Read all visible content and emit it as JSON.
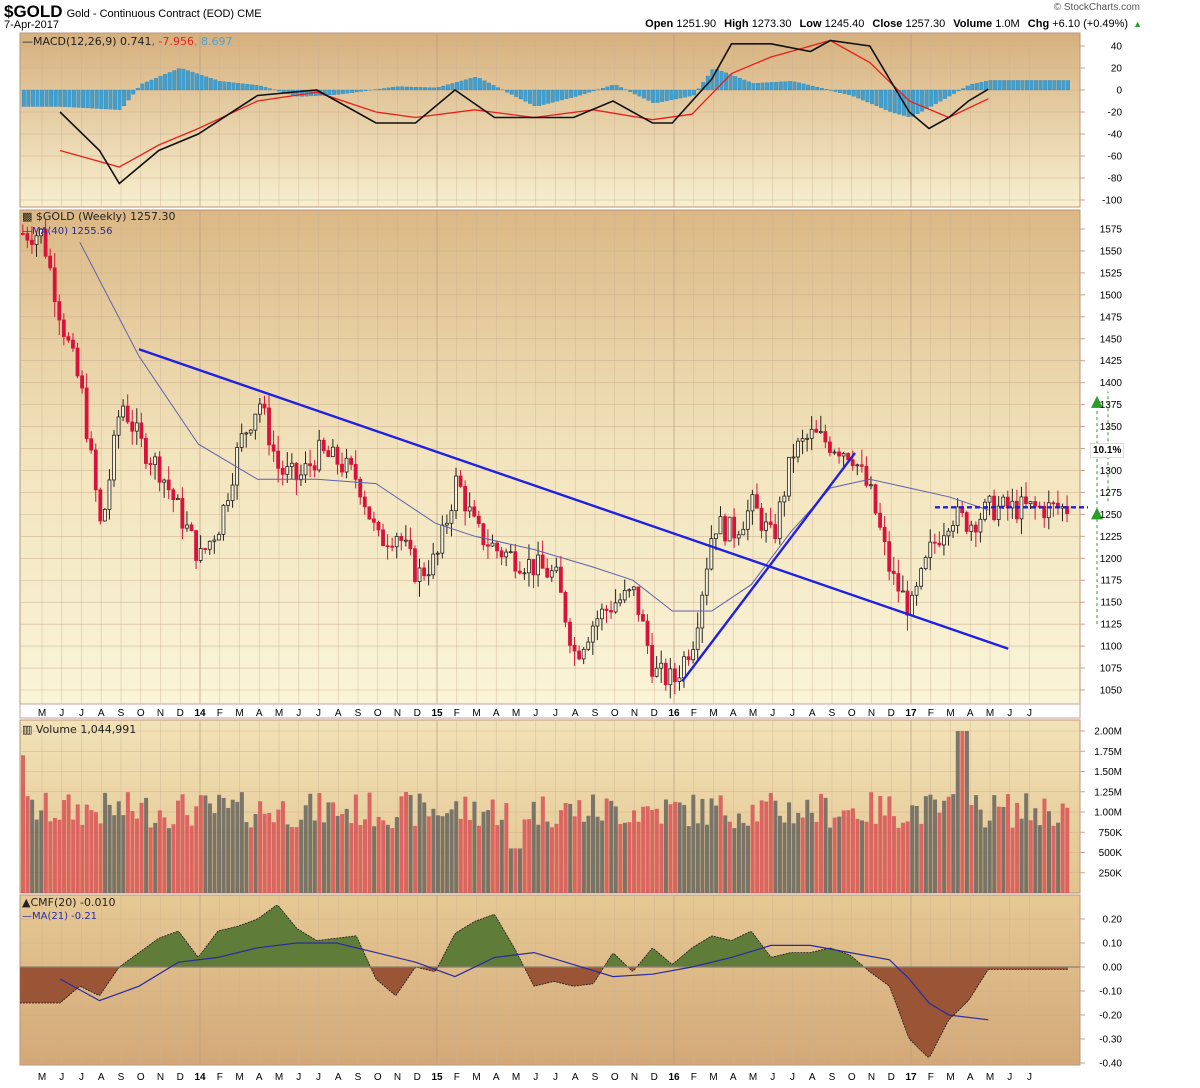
{
  "header": {
    "symbol": "$GOLD",
    "description": "Gold - Continuous Contract (EOD) CME",
    "date": "7-Apr-2017",
    "brand": "© StockCharts.com",
    "open_label": "Open",
    "open": "1251.90",
    "high_label": "High",
    "high": "1273.30",
    "low_label": "Low",
    "low": "1245.40",
    "close_label": "Close",
    "close": "1257.30",
    "volume_label": "Volume",
    "volume": "1.0M",
    "chg_label": "Chg",
    "chg": "+6.10 (+0.49%)",
    "chg_icon": "up-triangle-icon"
  },
  "legends": {
    "macd_name": "MACD(12,26,9)",
    "macd_value": "0.741",
    "macd_signal": ", -7.956",
    "macd_hist": ", 8.697",
    "price_name": "$GOLD (Weekly) 1257.30",
    "ma_name": "MA(40) 1255.56",
    "volume_name": "Volume 1,044,991",
    "cmf_name": "CMF(20) -0.010",
    "cmf_ma_name": "MA(21) -0.21"
  },
  "annotation": {
    "pct_label": "10.1%"
  },
  "colors": {
    "panel_top": "#d6b07e",
    "panel_bottom": "#f8f2d2",
    "up": "#222222",
    "down": "#d8123a",
    "macd": "#111111",
    "signal": "#e8201c",
    "hist": "#3f9fd0",
    "ma": "#6060b0",
    "trend": "#2020e0",
    "vol_down": "#d95a5a",
    "vol_up": "#6e6a62",
    "cmf_pos": "#5f7d38",
    "cmf_neg": "#9a5436",
    "target": "#2a9d2a"
  },
  "chart_data": [
    {
      "type": "line",
      "title": "MACD(12,26,9)",
      "ylim": [
        -100,
        50
      ],
      "yticks": [
        40,
        20,
        0,
        -20,
        -40,
        -60,
        -80,
        -100
      ],
      "series": [
        {
          "name": "MACD",
          "x": [
            "2013-05",
            "2013-07",
            "2013-08",
            "2013-10",
            "2013-12",
            "2014-03",
            "2014-06",
            "2014-09",
            "2014-11",
            "2015-01",
            "2015-03",
            "2015-05",
            "2015-07",
            "2015-09",
            "2015-11",
            "2015-12",
            "2016-02",
            "2016-03",
            "2016-05",
            "2016-07",
            "2016-08",
            "2016-10",
            "2016-11",
            "2016-12",
            "2017-01",
            "2017-02",
            "2017-03",
            "2017-04"
          ],
          "values": [
            -20,
            -55,
            -85,
            -55,
            -40,
            -5,
            0,
            -30,
            -30,
            0,
            -25,
            -25,
            -25,
            -10,
            -30,
            -30,
            10,
            42,
            42,
            35,
            45,
            40,
            10,
            -20,
            -35,
            -25,
            -10,
            0.7
          ]
        },
        {
          "name": "Signal",
          "x": [
            "2013-05",
            "2013-08",
            "2013-10",
            "2013-12",
            "2014-03",
            "2014-06",
            "2014-09",
            "2014-11",
            "2015-02",
            "2015-05",
            "2015-08",
            "2015-11",
            "2016-01",
            "2016-03",
            "2016-05",
            "2016-08",
            "2016-10",
            "2016-12",
            "2017-02",
            "2017-04"
          ],
          "values": [
            -55,
            -70,
            -50,
            -35,
            -10,
            -2,
            -20,
            -25,
            -18,
            -25,
            -18,
            -27,
            -22,
            15,
            30,
            45,
            25,
            -10,
            -25,
            -8
          ]
        },
        {
          "name": "Histogram",
          "x": [
            "2013-05",
            "2013-08",
            "2013-09",
            "2013-11",
            "2014-01",
            "2014-03",
            "2014-05",
            "2014-07",
            "2014-10",
            "2014-12",
            "2015-02",
            "2015-05",
            "2015-07",
            "2015-09",
            "2015-11",
            "2016-01",
            "2016-02",
            "2016-04",
            "2016-06",
            "2016-09",
            "2016-11",
            "2016-12",
            "2017-01",
            "2017-02",
            "2017-03",
            "2017-04"
          ],
          "values": [
            -15,
            -18,
            5,
            20,
            8,
            4,
            -6,
            -4,
            3,
            2,
            12,
            -15,
            -6,
            5,
            -12,
            -5,
            20,
            6,
            8,
            -5,
            -20,
            -25,
            -15,
            -5,
            5,
            8.7
          ]
        }
      ]
    },
    {
      "type": "candlestick",
      "title": "$GOLD (Weekly) 1257.30",
      "ylim": [
        1040,
        1590
      ],
      "yticks": [
        1575,
        1550,
        1525,
        1500,
        1475,
        1450,
        1425,
        1400,
        1375,
        1350,
        1325,
        1300,
        1275,
        1250,
        1225,
        1200,
        1175,
        1150,
        1125,
        1100,
        1075,
        1050
      ],
      "x_ticks": [
        "M",
        "J",
        "J",
        "A",
        "S",
        "O",
        "N",
        "D",
        "14",
        "F",
        "M",
        "A",
        "M",
        "J",
        "J",
        "A",
        "S",
        "O",
        "N",
        "D",
        "15",
        "F",
        "M",
        "A",
        "M",
        "J",
        "J",
        "A",
        "S",
        "O",
        "N",
        "D",
        "16",
        "F",
        "M",
        "A",
        "M",
        "J",
        "J",
        "A",
        "S",
        "O",
        "N",
        "D",
        "17",
        "F",
        "M",
        "A",
        "M",
        "J",
        "J"
      ],
      "approx_closes": {
        "x": [
          "2013-04",
          "2013-05",
          "2013-06",
          "2013-07",
          "2013-08",
          "2013-09",
          "2013-10",
          "2013-11",
          "2013-12",
          "2014-01",
          "2014-02",
          "2014-03",
          "2014-04",
          "2014-05",
          "2014-06",
          "2014-07",
          "2014-08",
          "2014-09",
          "2014-10",
          "2014-11",
          "2014-12",
          "2015-01",
          "2015-02",
          "2015-03",
          "2015-04",
          "2015-05",
          "2015-06",
          "2015-07",
          "2015-08",
          "2015-09",
          "2015-10",
          "2015-11",
          "2015-12",
          "2016-01",
          "2016-02",
          "2016-03",
          "2016-04",
          "2016-05",
          "2016-06",
          "2016-07",
          "2016-08",
          "2016-09",
          "2016-10",
          "2016-11",
          "2016-12",
          "2017-01",
          "2017-02",
          "2017-03",
          "2017-04"
        ],
        "values": [
          1570,
          1470,
          1390,
          1230,
          1380,
          1330,
          1300,
          1250,
          1200,
          1240,
          1330,
          1380,
          1300,
          1290,
          1320,
          1310,
          1290,
          1220,
          1230,
          1180,
          1200,
          1290,
          1230,
          1210,
          1200,
          1190,
          1180,
          1090,
          1130,
          1150,
          1160,
          1070,
          1060,
          1110,
          1240,
          1230,
          1260,
          1220,
          1320,
          1340,
          1330,
          1320,
          1270,
          1180,
          1140,
          1210,
          1250,
          1240,
          1257
        ]
      },
      "overlays": [
        {
          "name": "MA(40)",
          "last": 1255.56,
          "x": [
            "2013-06",
            "2013-09",
            "2013-12",
            "2014-03",
            "2014-06",
            "2014-09",
            "2014-12",
            "2015-02",
            "2015-05",
            "2015-08",
            "2015-10",
            "2015-12",
            "2016-02",
            "2016-04",
            "2016-06",
            "2016-08",
            "2016-10",
            "2016-12",
            "2017-02",
            "2017-04"
          ],
          "values": [
            1560,
            1430,
            1330,
            1290,
            1290,
            1285,
            1240,
            1225,
            1210,
            1190,
            1175,
            1140,
            1140,
            1170,
            1230,
            1280,
            1290,
            1280,
            1270,
            1255
          ]
        },
        {
          "name": "Downtrend line",
          "from": [
            "2013-09",
            1438
          ],
          "to": [
            "2017-04",
            1097
          ]
        },
        {
          "name": "Uptrend line",
          "from": [
            "2015-12",
            1060
          ],
          "to": [
            "2016-09",
            1320
          ]
        },
        {
          "name": "Horizontal resistance (dashed)",
          "from": [
            "2016-10",
            1258
          ],
          "to": [
            "2017-04",
            1258
          ]
        },
        {
          "name": "Target 10.1%",
          "base": 1258,
          "target": 1385,
          "label": "10.1%"
        }
      ]
    },
    {
      "type": "bar",
      "title": "Volume 1,044,991",
      "ylim": [
        0,
        2000000
      ],
      "yticks": [
        "2.00M",
        "1.75M",
        "1.50M",
        "1.25M",
        "1.00M",
        "750K",
        "500K",
        "250K"
      ],
      "note": "weekly volume bars, red = down week, gray = up week; spike ~2.0M in Nov 2016"
    },
    {
      "type": "area",
      "title": "CMF(20) -0.010",
      "ylim": [
        -0.4,
        0.25
      ],
      "yticks": [
        "0.20",
        "0.10",
        "0.00",
        "-0.10",
        "-0.20",
        "-0.30",
        "-0.40"
      ],
      "series": [
        {
          "name": "CMF(20)",
          "x": [
            "2013-05",
            "2013-06",
            "2013-07",
            "2013-08",
            "2013-09",
            "2013-10",
            "2013-11",
            "2013-12",
            "2014-01",
            "2014-02",
            "2014-03",
            "2014-04",
            "2014-05",
            "2014-06",
            "2014-07",
            "2014-08",
            "2014-09",
            "2014-10",
            "2014-11",
            "2014-12",
            "2015-01",
            "2015-02",
            "2015-03",
            "2015-04",
            "2015-05",
            "2015-06",
            "2015-07",
            "2015-08",
            "2015-09",
            "2015-10",
            "2015-11",
            "2015-12",
            "2016-01",
            "2016-02",
            "2016-03",
            "2016-04",
            "2016-05",
            "2016-06",
            "2016-07",
            "2016-08",
            "2016-09",
            "2016-10",
            "2016-11",
            "2016-12",
            "2017-01",
            "2017-02",
            "2017-03",
            "2017-04"
          ],
          "values": [
            -0.15,
            -0.08,
            -0.12,
            0.0,
            0.06,
            0.12,
            0.15,
            0.04,
            0.15,
            0.17,
            0.2,
            0.26,
            0.16,
            0.11,
            0.12,
            0.13,
            -0.05,
            -0.12,
            0.0,
            -0.02,
            0.14,
            0.19,
            0.22,
            0.08,
            -0.08,
            -0.06,
            -0.08,
            -0.07,
            0.06,
            -0.02,
            0.08,
            0.01,
            0.08,
            0.13,
            0.11,
            0.15,
            0.04,
            0.06,
            0.06,
            0.08,
            0.05,
            -0.02,
            -0.08,
            -0.3,
            -0.38,
            -0.22,
            -0.14,
            -0.01
          ]
        },
        {
          "name": "MA(21)",
          "last": -0.21,
          "x": [
            "2013-05",
            "2013-07",
            "2013-09",
            "2013-11",
            "2014-01",
            "2014-03",
            "2014-05",
            "2014-07",
            "2014-09",
            "2014-11",
            "2015-01",
            "2015-03",
            "2015-05",
            "2015-07",
            "2015-09",
            "2015-11",
            "2016-01",
            "2016-03",
            "2016-05",
            "2016-07",
            "2016-09",
            "2016-11",
            "2016-12",
            "2017-01",
            "2017-02",
            "2017-04"
          ],
          "values": [
            -0.05,
            -0.14,
            -0.08,
            0.02,
            0.04,
            0.08,
            0.1,
            0.1,
            0.06,
            0.02,
            -0.04,
            0.04,
            0.06,
            0.01,
            -0.04,
            -0.03,
            0.0,
            0.04,
            0.09,
            0.09,
            0.06,
            0.03,
            -0.05,
            -0.15,
            -0.2,
            -0.22
          ]
        }
      ]
    }
  ]
}
